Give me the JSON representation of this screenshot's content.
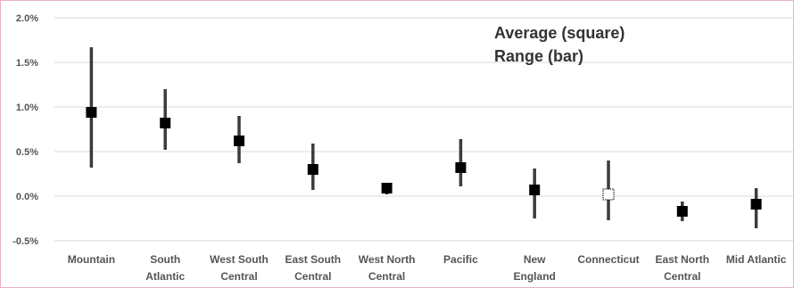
{
  "chart_data": {
    "type": "scatter",
    "title": "",
    "xlabel": "",
    "ylabel": "",
    "ylim": [
      -0.5,
      2.0
    ],
    "yticks": [
      "2.0%",
      "1.5%",
      "1.0%",
      "0.5%",
      "0.0%",
      "-0.5%"
    ],
    "ytick_values": [
      2.0,
      1.5,
      1.0,
      0.5,
      0.0,
      -0.5
    ],
    "grid": true,
    "annotation_lines": [
      "Average (square)",
      "Range (bar)"
    ],
    "categories": [
      [
        "Mountain"
      ],
      [
        "South",
        "Atlantic"
      ],
      [
        "West South",
        "Central"
      ],
      [
        "East South",
        "Central"
      ],
      [
        "West North",
        "Central"
      ],
      [
        "Pacific"
      ],
      [
        "New",
        "England"
      ],
      [
        "Connecticut"
      ],
      [
        "East North",
        "Central"
      ],
      [
        "Mid Atlantic"
      ]
    ],
    "series": [
      {
        "name": "Average (square)",
        "values": [
          0.94,
          0.82,
          0.62,
          0.3,
          0.09,
          0.32,
          0.07,
          0.02,
          -0.17,
          -0.09
        ]
      },
      {
        "name": "Range (bar)",
        "low": [
          0.32,
          0.52,
          0.37,
          0.07,
          0.02,
          0.11,
          -0.25,
          -0.27,
          -0.28,
          -0.36
        ],
        "high": [
          1.67,
          1.2,
          0.9,
          0.59,
          0.15,
          0.64,
          0.31,
          0.4,
          -0.06,
          0.09
        ]
      }
    ],
    "highlight_index": 7,
    "colors": {
      "marker": "#000000",
      "bar": "#3b3b3b",
      "highlight_fill": "#ffffff",
      "grid": "#d9d9d9"
    }
  }
}
